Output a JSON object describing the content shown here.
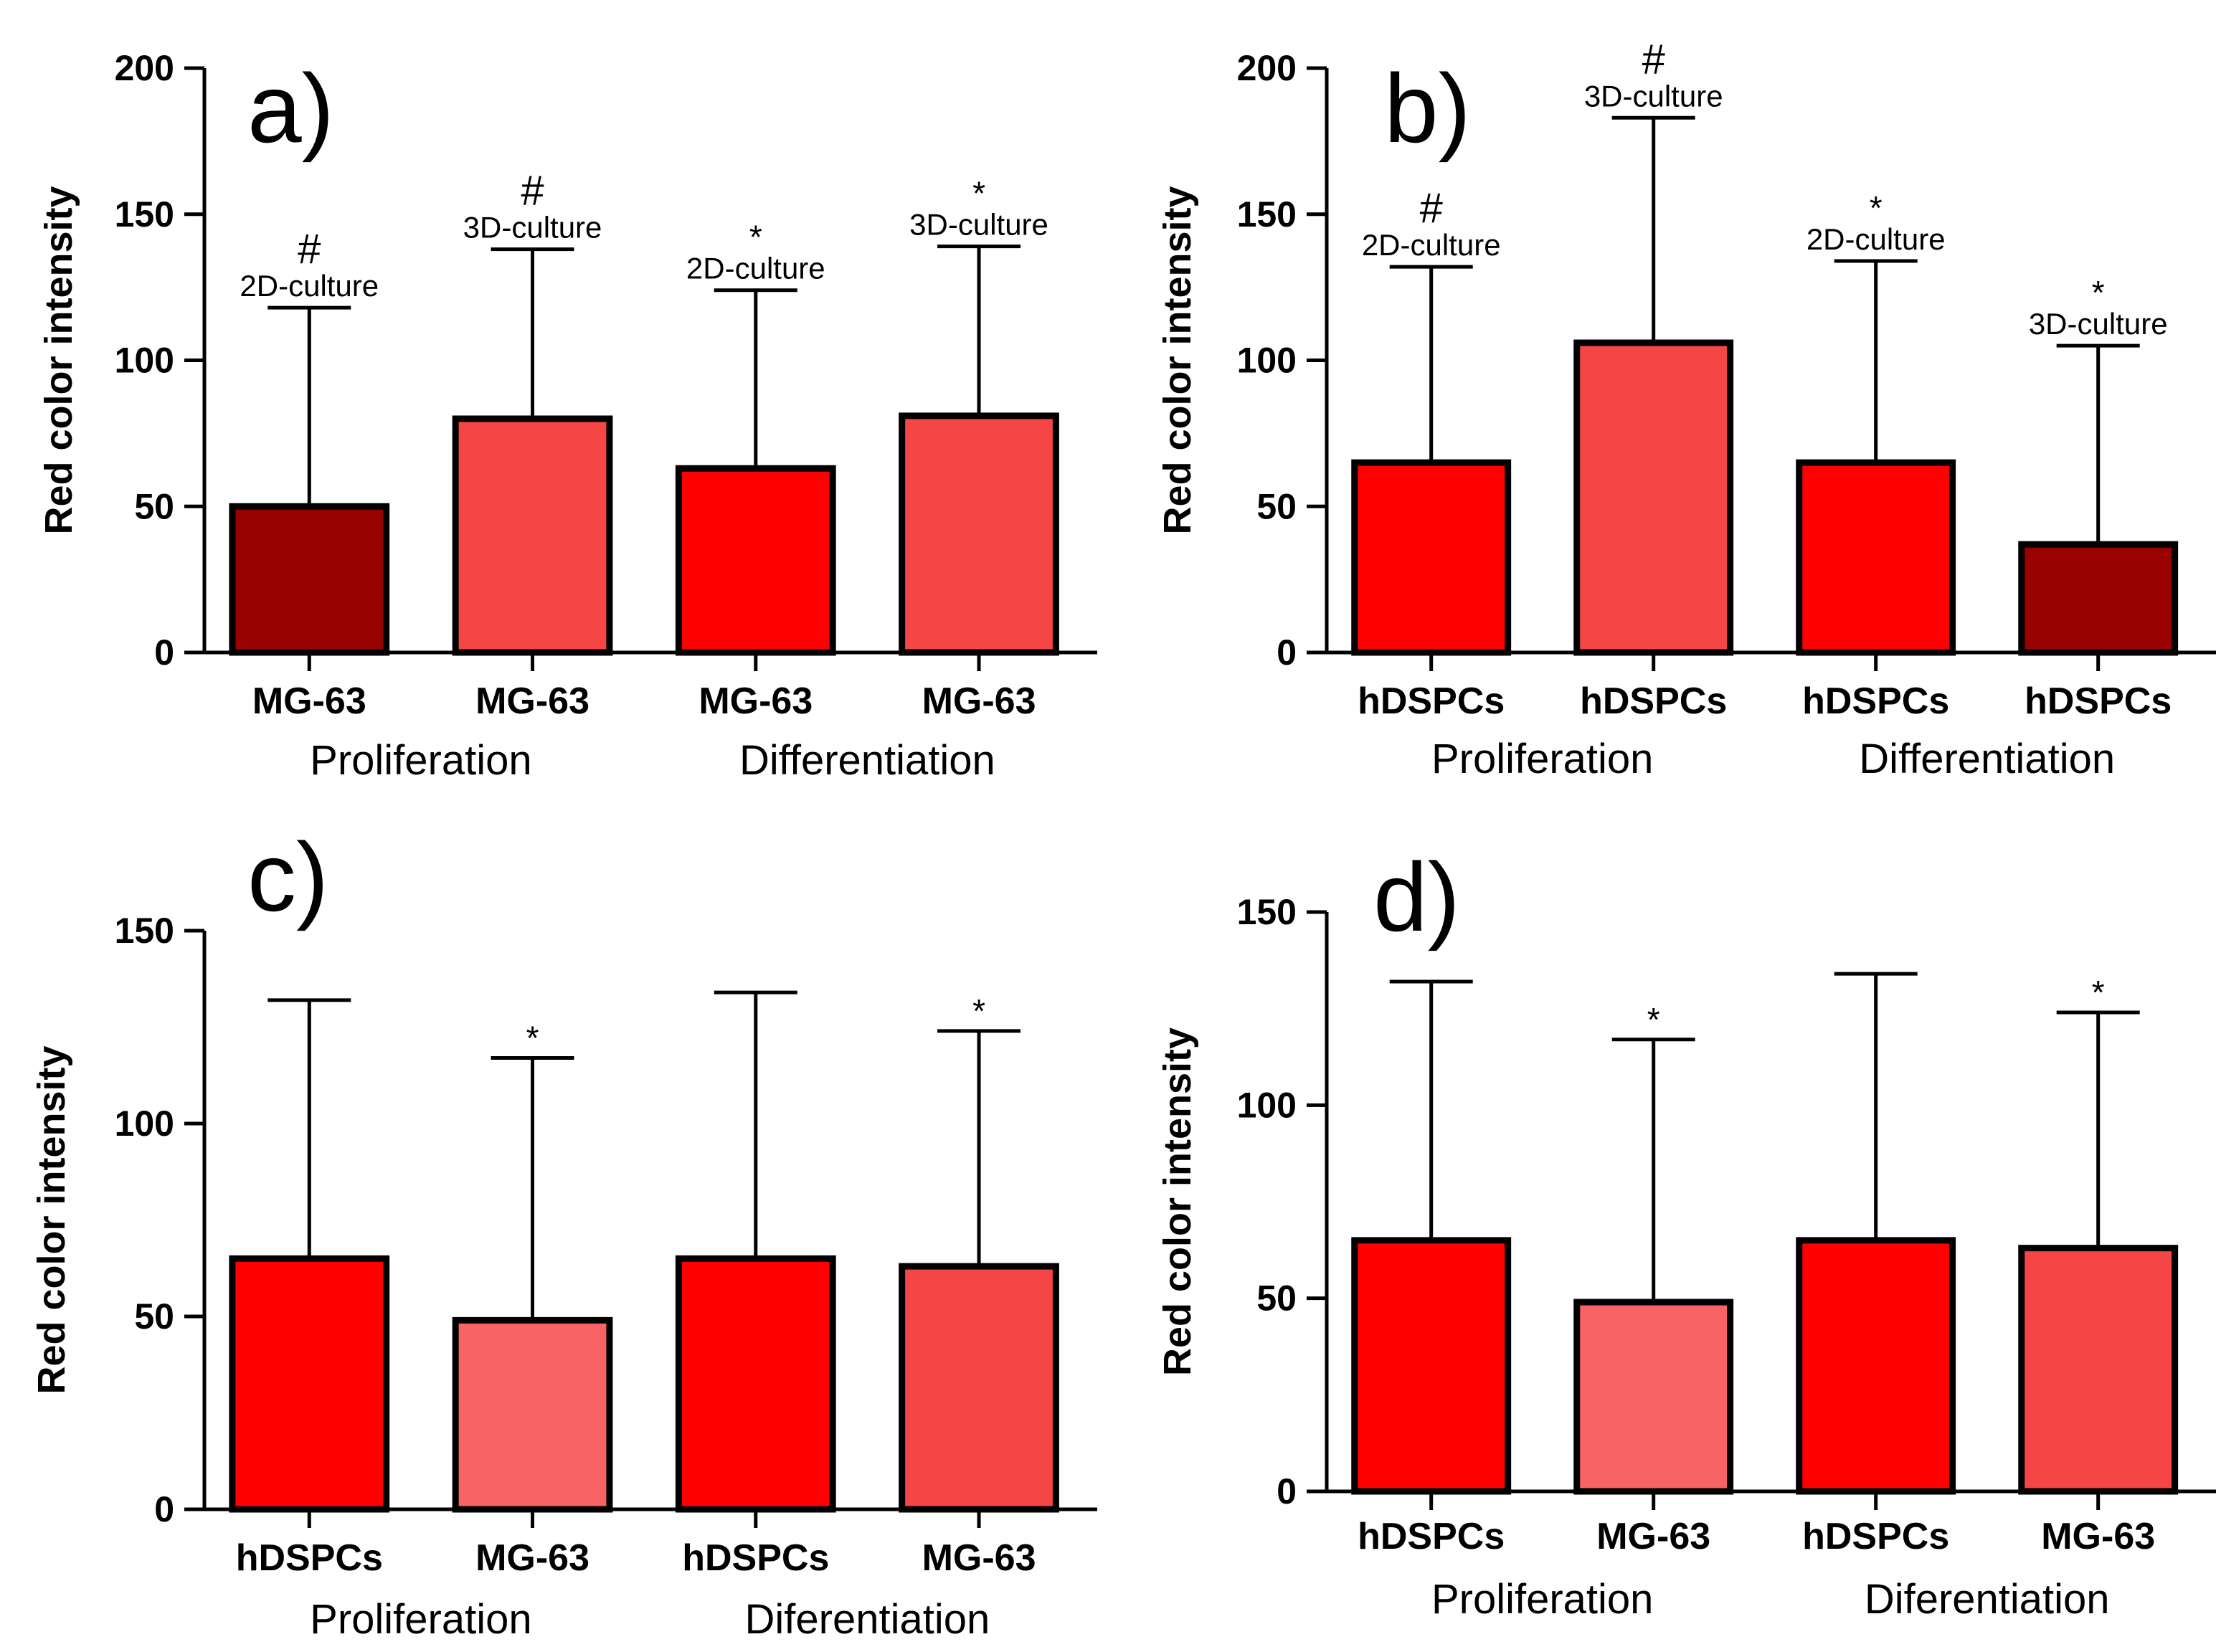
{
  "colors": {
    "dark_red": "#990000",
    "bright_red": "#ff0000",
    "salmon_red": "#f64545",
    "light_red": "#f86464"
  },
  "chart_data": [
    {
      "panel": "a)",
      "type": "bar",
      "ylabel": "Red color intensity",
      "ylim": [
        0,
        200
      ],
      "yticks": [
        0,
        50,
        100,
        150,
        200
      ],
      "categories": [
        "MG-63",
        "MG-63",
        "MG-63",
        "MG-63"
      ],
      "groups": [
        {
          "label": "Proliferation",
          "span": [
            0,
            1
          ]
        },
        {
          "label": "Differentiation",
          "span": [
            2,
            3
          ]
        }
      ],
      "values": [
        50,
        80,
        63,
        81
      ],
      "errors": [
        68,
        58,
        61,
        58
      ],
      "bar_colors": [
        "#990000",
        "#f64545",
        "#ff0000",
        "#f64545"
      ],
      "annotations": [
        {
          "symbol": "#",
          "text": "2D-culture"
        },
        {
          "symbol": "#",
          "text": "3D-culture"
        },
        {
          "symbol": "*",
          "text": "2D-culture"
        },
        {
          "symbol": "*",
          "text": "3D-culture"
        }
      ]
    },
    {
      "panel": "b)",
      "type": "bar",
      "ylabel": "Red color intensity",
      "ylim": [
        0,
        200
      ],
      "yticks": [
        0,
        50,
        100,
        150,
        200
      ],
      "categories": [
        "hDSPCs",
        "hDSPCs",
        "hDSPCs",
        "hDSPCs"
      ],
      "groups": [
        {
          "label": "Proliferation",
          "span": [
            0,
            1
          ]
        },
        {
          "label": "Differentiation",
          "span": [
            2,
            3
          ]
        }
      ],
      "values": [
        65,
        106,
        65,
        37
      ],
      "errors": [
        67,
        77,
        69,
        68
      ],
      "bar_colors": [
        "#ff0000",
        "#f64545",
        "#ff0000",
        "#990000"
      ],
      "annotations": [
        {
          "symbol": "#",
          "text": "2D-culture"
        },
        {
          "symbol": "#",
          "text": "3D-culture"
        },
        {
          "symbol": "*",
          "text": "2D-culture"
        },
        {
          "symbol": "*",
          "text": "3D-culture"
        }
      ]
    },
    {
      "panel": "c)",
      "type": "bar",
      "ylabel": "Red color intensity",
      "ylim": [
        0,
        150
      ],
      "yticks": [
        0,
        50,
        100,
        150
      ],
      "categories": [
        "hDSPCs",
        "MG-63",
        "hDSPCs",
        "MG-63"
      ],
      "groups": [
        {
          "label": "Proliferation",
          "span": [
            0,
            1
          ]
        },
        {
          "label": "Diferentiation",
          "span": [
            2,
            3
          ]
        }
      ],
      "values": [
        65,
        49,
        65,
        63
      ],
      "errors": [
        67,
        68,
        69,
        61
      ],
      "bar_colors": [
        "#ff0000",
        "#f86464",
        "#ff0000",
        "#f64545"
      ],
      "annotations": [
        {
          "symbol": "",
          "text": ""
        },
        {
          "symbol": "*",
          "text": ""
        },
        {
          "symbol": "",
          "text": ""
        },
        {
          "symbol": "*",
          "text": ""
        }
      ]
    },
    {
      "panel": "d)",
      "type": "bar",
      "ylabel": "Red color intensity",
      "ylim": [
        0,
        150
      ],
      "yticks": [
        0,
        50,
        100,
        150
      ],
      "categories": [
        "hDSPCs",
        "MG-63",
        "hDSPCs",
        "MG-63"
      ],
      "groups": [
        {
          "label": "Proliferation",
          "span": [
            0,
            1
          ]
        },
        {
          "label": "Diferentiation",
          "span": [
            2,
            3
          ]
        }
      ],
      "values": [
        65,
        49,
        65,
        63
      ],
      "errors": [
        67,
        68,
        69,
        61
      ],
      "bar_colors": [
        "#ff0000",
        "#f86464",
        "#ff0000",
        "#f64545"
      ],
      "annotations": [
        {
          "symbol": "",
          "text": ""
        },
        {
          "symbol": "*",
          "text": ""
        },
        {
          "symbol": "",
          "text": ""
        },
        {
          "symbol": "*",
          "text": ""
        }
      ]
    }
  ]
}
